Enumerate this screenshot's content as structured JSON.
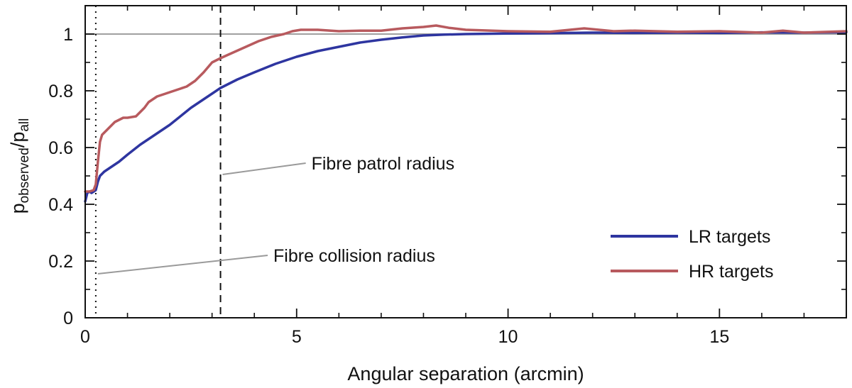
{
  "chart_data": {
    "type": "line",
    "xlabel": "Angular separation (arcmin)",
    "ylabel_main": "p",
    "ylabel_sub1": "observed",
    "ylabel_sep": "/p",
    "ylabel_sub2": "all",
    "xlim": [
      0,
      18
    ],
    "ylim": [
      0,
      1.1
    ],
    "xticks": [
      0,
      5,
      10,
      15
    ],
    "xticks_minor_step": 1,
    "yticks": [
      0,
      0.2,
      0.4,
      0.6,
      0.8,
      1
    ],
    "ytick_labels": [
      "0",
      "0.2",
      "0.4",
      "0.6",
      "0.8",
      "1"
    ],
    "yticks_minor_step": 0.1,
    "reference_line_y": 1,
    "vertical_lines": [
      {
        "x": 0.25,
        "style": "dotted",
        "label": "Fibre collision radius",
        "label_pos": [
          4.45,
          0.22
        ],
        "pointer_to": [
          0.3,
          0.155
        ]
      },
      {
        "x": 3.2,
        "style": "dashed",
        "label": "Fibre patrol radius",
        "label_pos": [
          5.35,
          0.545
        ],
        "pointer_to": [
          3.25,
          0.505
        ]
      }
    ],
    "legend_position": "lower-right",
    "series": [
      {
        "name": "LR targets",
        "color": "#2e35a0",
        "x": [
          0,
          0.05,
          0.1,
          0.15,
          0.2,
          0.25,
          0.3,
          0.35,
          0.45,
          0.6,
          0.8,
          1.0,
          1.3,
          1.6,
          2.0,
          2.5,
          3.0,
          3.2,
          3.6,
          4.0,
          4.5,
          5.0,
          5.5,
          6.0,
          6.5,
          7.0,
          7.5,
          8.0,
          8.5,
          9.0,
          10,
          11,
          12,
          13,
          14,
          15,
          16,
          17,
          18
        ],
        "values": [
          0.41,
          0.44,
          0.445,
          0.44,
          0.445,
          0.45,
          0.48,
          0.5,
          0.515,
          0.53,
          0.55,
          0.575,
          0.61,
          0.64,
          0.68,
          0.74,
          0.79,
          0.81,
          0.84,
          0.865,
          0.895,
          0.92,
          0.94,
          0.955,
          0.97,
          0.98,
          0.988,
          0.995,
          0.998,
          1.0,
          1.002,
          1.003,
          1.005,
          1.004,
          1.005,
          1.004,
          1.006,
          1.005,
          1.007
        ]
      },
      {
        "name": "HR targets",
        "color": "#b85a5e",
        "x": [
          0,
          0.1,
          0.2,
          0.25,
          0.3,
          0.35,
          0.4,
          0.5,
          0.7,
          0.9,
          1.0,
          1.2,
          1.4,
          1.5,
          1.7,
          1.9,
          2.1,
          2.4,
          2.6,
          2.8,
          3.0,
          3.2,
          3.5,
          3.8,
          4.1,
          4.4,
          4.7,
          4.9,
          5.1,
          5.5,
          6.0,
          6.5,
          7.0,
          7.5,
          8.0,
          8.3,
          8.6,
          9.0,
          10,
          11,
          11.8,
          12.5,
          13,
          14,
          15,
          16,
          16.5,
          17,
          18
        ],
        "values": [
          0.445,
          0.445,
          0.45,
          0.47,
          0.55,
          0.62,
          0.645,
          0.66,
          0.69,
          0.705,
          0.705,
          0.71,
          0.74,
          0.76,
          0.78,
          0.79,
          0.8,
          0.815,
          0.835,
          0.865,
          0.9,
          0.915,
          0.935,
          0.955,
          0.975,
          0.99,
          1.0,
          1.01,
          1.015,
          1.015,
          1.01,
          1.012,
          1.012,
          1.02,
          1.025,
          1.03,
          1.022,
          1.015,
          1.01,
          1.008,
          1.02,
          1.01,
          1.012,
          1.008,
          1.01,
          1.005,
          1.012,
          1.005,
          1.01
        ]
      }
    ]
  }
}
